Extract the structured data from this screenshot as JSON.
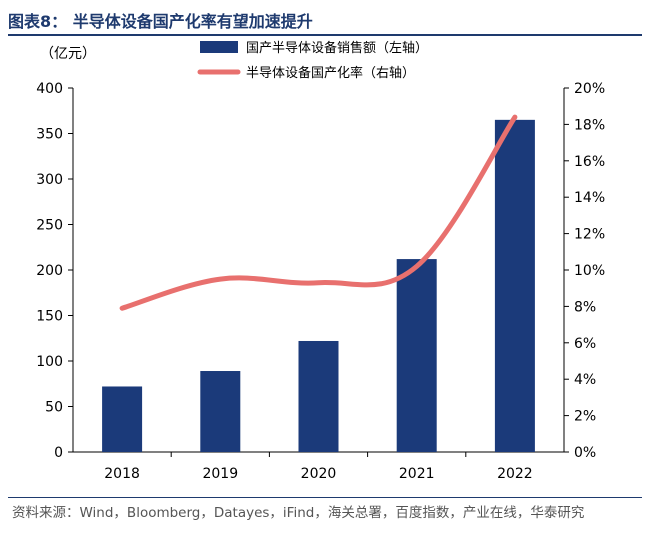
{
  "header": {
    "title": "图表8： 半导体设备国产化率有望加速提升"
  },
  "footer": {
    "source": "资料来源：Wind，Bloomberg，Datayes，iFind，海关总署，百度指数，产业在线，华泰研究"
  },
  "colors": {
    "title": "#1e3a6e",
    "bar": "#1b3a7a",
    "line": "#e8706e"
  },
  "chart_data": {
    "type": "bar",
    "categories": [
      "2018",
      "2019",
      "2020",
      "2021",
      "2022"
    ],
    "series": [
      {
        "name": "国产半导体设备销售额（左轴）",
        "type": "bar",
        "axis": "left",
        "values": [
          72,
          89,
          122,
          212,
          365
        ]
      },
      {
        "name": "半导体设备国产化率（右轴）",
        "type": "line",
        "axis": "right",
        "values": [
          0.079,
          0.095,
          0.093,
          0.102,
          0.184
        ]
      }
    ],
    "left_axis": {
      "unit_label": "（亿元）",
      "ylim": [
        0,
        400
      ],
      "ticks": [
        "0",
        "50",
        "100",
        "150",
        "200",
        "250",
        "300",
        "350",
        "400"
      ]
    },
    "right_axis": {
      "ylim": [
        0,
        0.2
      ],
      "ticks": [
        "0%",
        "2%",
        "4%",
        "6%",
        "8%",
        "10%",
        "12%",
        "14%",
        "16%",
        "18%",
        "20%"
      ]
    },
    "grid": false,
    "legend_position": "top-right"
  }
}
